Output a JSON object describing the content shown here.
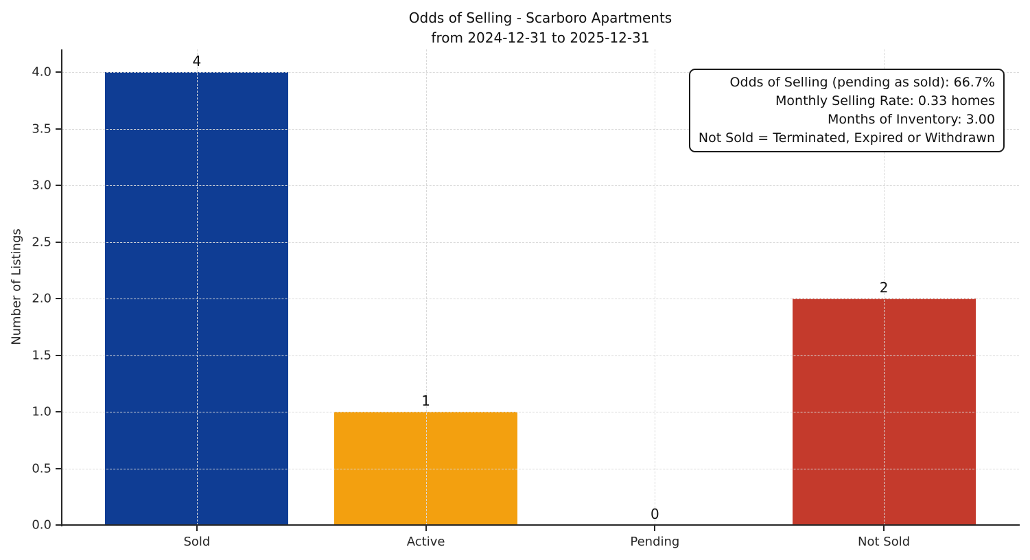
{
  "figure": {
    "background": "#ffffff"
  },
  "chart_data": {
    "type": "bar",
    "title_lines": [
      "Odds of Selling - Scarboro Apartments",
      "from 2024-12-31 to 2025-12-31"
    ],
    "categories": [
      "Sold",
      "Active",
      "Pending",
      "Not Sold"
    ],
    "values": [
      4,
      1,
      0,
      2
    ],
    "value_labels": [
      "4",
      "1",
      "0",
      "2"
    ],
    "bar_colors": [
      "#0f3d94",
      "#f3a00f",
      "#808080",
      "#c43a2c"
    ],
    "xlabel": "",
    "ylabel": "Number of Listings",
    "ylim": [
      0,
      4.2
    ],
    "xlim": [
      -0.59,
      3.59
    ],
    "bar_width": 0.8,
    "yticks": [
      0,
      0.5,
      1,
      1.5,
      2,
      2.5,
      3,
      3.5,
      4
    ],
    "ytick_labels": [
      "0.0",
      "0.5",
      "1.0",
      "1.5",
      "2.0",
      "2.5",
      "3.0",
      "3.5",
      "4.0"
    ],
    "grid": {
      "style": "dashed",
      "color": "#d9d9d9",
      "axisbelow": false
    },
    "legend_position": "none",
    "axis_color": "#262626",
    "annotation_box": {
      "lines": [
        "Odds of Selling (pending as sold): 66.7%",
        "Monthly Selling Rate: 0.33 homes",
        "Months of Inventory: 3.00",
        "Not Sold = Terminated, Expired or Withdrawn"
      ]
    }
  }
}
